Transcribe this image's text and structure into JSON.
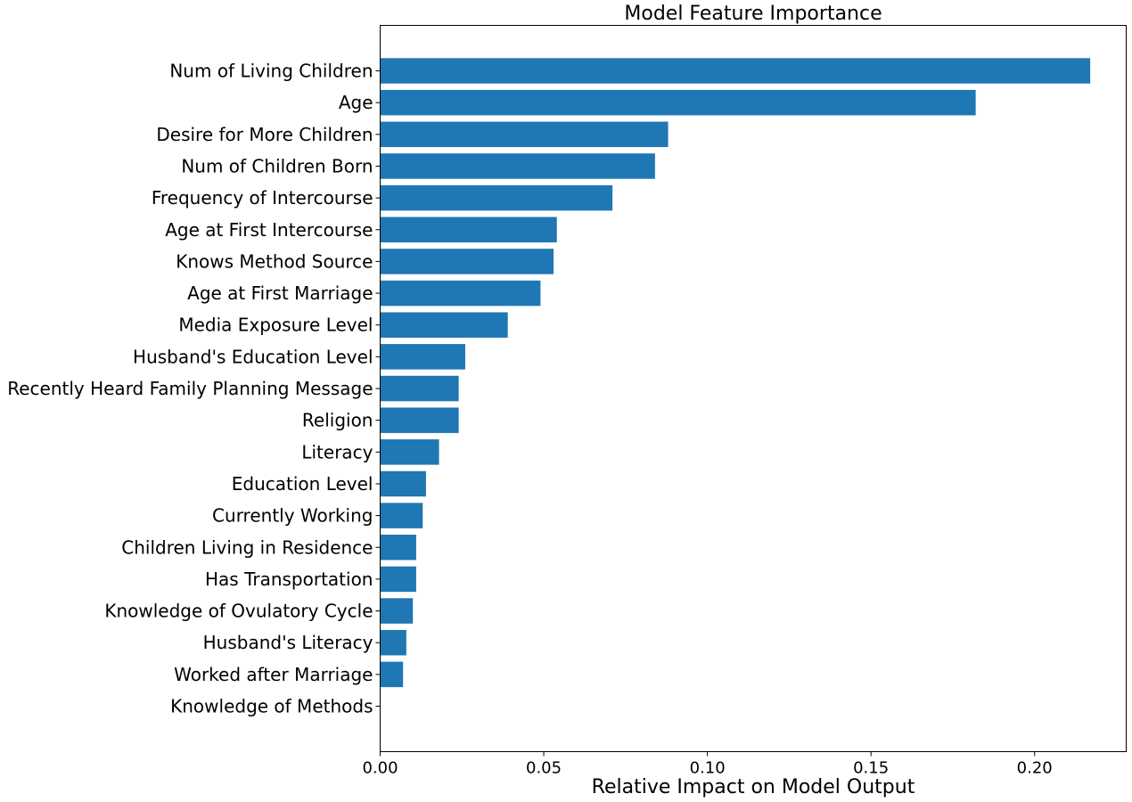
{
  "chart_data": {
    "type": "bar",
    "orientation": "horizontal",
    "title": "Model Feature Importance",
    "xlabel": "Relative Impact on Model Output",
    "ylabel": "",
    "xlim": [
      0,
      0.228
    ],
    "xticks": [
      0.0,
      0.05,
      0.1,
      0.15,
      0.2
    ],
    "xtick_labels": [
      "0.00",
      "0.05",
      "0.10",
      "0.15",
      "0.20"
    ],
    "grid": false,
    "bar_color": "#1f77b4",
    "categories": [
      "Num of Living Children",
      "Age",
      "Desire for More Children",
      "Num of Children Born",
      "Frequency of Intercourse",
      "Age at First Intercourse",
      "Knows Method Source",
      "Age at First Marriage",
      "Media Exposure Level",
      "Husband's Education Level",
      "Recently Heard Family Planning Message",
      "Religion",
      "Literacy",
      "Education Level",
      "Currently Working",
      "Children Living in Residence",
      "Has Transportation",
      "Knowledge of Ovulatory Cycle",
      "Husband's Literacy",
      "Worked after Marriage",
      "Knowledge of Methods"
    ],
    "values": [
      0.217,
      0.182,
      0.088,
      0.084,
      0.071,
      0.054,
      0.053,
      0.049,
      0.039,
      0.026,
      0.024,
      0.024,
      0.018,
      0.014,
      0.013,
      0.011,
      0.011,
      0.01,
      0.008,
      0.007,
      0.0
    ]
  }
}
